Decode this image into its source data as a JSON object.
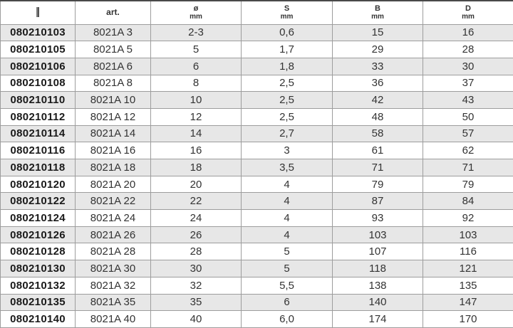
{
  "colors": {
    "row_alt": "#e7e7e7",
    "row_base": "#ffffff",
    "border": "#9d9d9d",
    "border_dark": "#4a4a4a",
    "text": "#333333",
    "code_text": "#1a1a1a"
  },
  "table": {
    "header": {
      "icon": "barcode-icon",
      "art_label": "art.",
      "unit_columns": [
        {
          "symbol": "ø",
          "unit": "mm"
        },
        {
          "symbol": "S",
          "unit": "mm"
        },
        {
          "symbol": "B",
          "unit": "mm"
        },
        {
          "symbol": "D",
          "unit": "mm"
        }
      ]
    },
    "rows": [
      {
        "code": "080210103",
        "art": "8021A 3",
        "diameter": "2-3",
        "s": "0,6",
        "b": "15",
        "d": "16"
      },
      {
        "code": "080210105",
        "art": "8021A 5",
        "diameter": "5",
        "s": "1,7",
        "b": "29",
        "d": "28"
      },
      {
        "code": "080210106",
        "art": "8021A 6",
        "diameter": "6",
        "s": "1,8",
        "b": "33",
        "d": "30"
      },
      {
        "code": "080210108",
        "art": "8021A 8",
        "diameter": "8",
        "s": "2,5",
        "b": "36",
        "d": "37"
      },
      {
        "code": "080210110",
        "art": "8021A 10",
        "diameter": "10",
        "s": "2,5",
        "b": "42",
        "d": "43"
      },
      {
        "code": "080210112",
        "art": "8021A 12",
        "diameter": "12",
        "s": "2,5",
        "b": "48",
        "d": "50"
      },
      {
        "code": "080210114",
        "art": "8021A 14",
        "diameter": "14",
        "s": "2,7",
        "b": "58",
        "d": "57"
      },
      {
        "code": "080210116",
        "art": "8021A 16",
        "diameter": "16",
        "s": "3",
        "b": "61",
        "d": "62"
      },
      {
        "code": "080210118",
        "art": "8021A 18",
        "diameter": "18",
        "s": "3,5",
        "b": "71",
        "d": "71"
      },
      {
        "code": "080210120",
        "art": "8021A 20",
        "diameter": "20",
        "s": "4",
        "b": "79",
        "d": "79"
      },
      {
        "code": "080210122",
        "art": "8021A 22",
        "diameter": "22",
        "s": "4",
        "b": "87",
        "d": "84"
      },
      {
        "code": "080210124",
        "art": "8021A 24",
        "diameter": "24",
        "s": "4",
        "b": "93",
        "d": "92"
      },
      {
        "code": "080210126",
        "art": "8021A 26",
        "diameter": "26",
        "s": "4",
        "b": "103",
        "d": "103"
      },
      {
        "code": "080210128",
        "art": "8021A 28",
        "diameter": "28",
        "s": "5",
        "b": "107",
        "d": "116"
      },
      {
        "code": "080210130",
        "art": "8021A 30",
        "diameter": "30",
        "s": "5",
        "b": "118",
        "d": "121"
      },
      {
        "code": "080210132",
        "art": "8021A 32",
        "diameter": "32",
        "s": "5,5",
        "b": "138",
        "d": "135"
      },
      {
        "code": "080210135",
        "art": "8021A 35",
        "diameter": "35",
        "s": "6",
        "b": "140",
        "d": "147"
      },
      {
        "code": "080210140",
        "art": "8021A 40",
        "diameter": "40",
        "s": "6,0",
        "b": "174",
        "d": "170"
      }
    ]
  }
}
